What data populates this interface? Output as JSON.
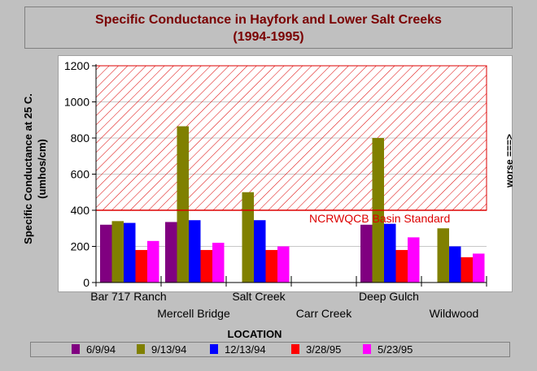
{
  "title_lines": [
    "Specific Conductance in Hayfork and Lower Salt  Creeks",
    "(1994-1995)"
  ],
  "colors": {
    "title": "#7a0000",
    "standard_line": "#dd0000",
    "hatch": "#dd0000"
  },
  "chart_data": {
    "type": "bar",
    "title": "Specific Conductance in Hayfork and Lower Salt  Creeks (1994-1995)",
    "xlabel": "LOCATION",
    "ylabel_lines": [
      "Specific Conductance  at 25 C.",
      "(umhos/cm)"
    ],
    "right_label": "worse ===>",
    "ylim": [
      0,
      1200
    ],
    "yticks": [
      "0",
      "200",
      "400",
      "600",
      "800",
      "1000",
      "1200"
    ],
    "ytick_values": [
      0,
      200,
      400,
      600,
      800,
      1000,
      1200
    ],
    "grid": true,
    "legend_position": "bottom",
    "categories": [
      "Bar 717 Ranch",
      "Mercell Bridge",
      "Salt Creek",
      "Carr Creek",
      "Deep Gulch",
      "Wildwood"
    ],
    "series": [
      {
        "name": "6/9/94",
        "color": "#800080",
        "values": [
          320,
          335,
          null,
          null,
          320,
          null
        ]
      },
      {
        "name": "9/13/94",
        "color": "#808000",
        "values": [
          340,
          865,
          500,
          null,
          800,
          300
        ]
      },
      {
        "name": "12/13/94",
        "color": "#0000ff",
        "values": [
          330,
          345,
          345,
          null,
          325,
          200
        ]
      },
      {
        "name": "3/28/95",
        "color": "#ff0000",
        "values": [
          180,
          180,
          180,
          null,
          180,
          140
        ]
      },
      {
        "name": "5/23/95",
        "color": "#ff00ff",
        "values": [
          230,
          220,
          200,
          null,
          250,
          160
        ]
      }
    ],
    "annotation": {
      "text": "NCRWQCB Basin Standard",
      "value": 400,
      "shaded_above": true
    }
  }
}
